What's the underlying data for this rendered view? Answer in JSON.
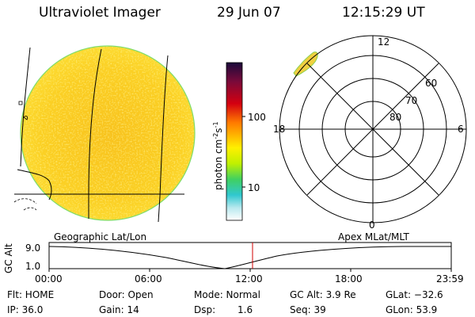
{
  "header": {
    "instrument": "Ultraviolet Imager",
    "date": "29 Jun 07",
    "time": "12:15:29 UT"
  },
  "colorbar": {
    "unit_label": "photon cm",
    "unit_sup1": "-2",
    "unit_mid": "s",
    "unit_sup2": "-1",
    "ticks": [
      "100",
      "10"
    ],
    "colors": [
      "#1a0a3a",
      "#7a0a3a",
      "#d40010",
      "#ff7a00",
      "#ffd000",
      "#fff000",
      "#c0f000",
      "#40d060",
      "#30c8d0",
      "#b8e8ee",
      "#ffffff"
    ]
  },
  "left_panel": {
    "caption": "Geographic Lat/Lon"
  },
  "polar_panel": {
    "caption": "Apex MLat/MLT",
    "mlt_labels": {
      "top": "12",
      "left": "18",
      "right": "6",
      "bottom": "0"
    },
    "lat_labels": [
      "60",
      "70",
      "80"
    ]
  },
  "alt_plot": {
    "ylabel": "GC Alt",
    "ymax_label": "9.0",
    "ymin_label": "1.0",
    "x_ticks": [
      "00:00",
      "06:00",
      "12:00",
      "18:00",
      "23:59"
    ],
    "marker_time": "12:15:29"
  },
  "info": {
    "flt": "Flt: HOME",
    "ip": "IP: 36.0",
    "door": "Door: Open",
    "gain": "Gain: 14",
    "mode": "Mode: Normal",
    "dsp_label": "Dsp:",
    "dsp_value": "1.6",
    "gc_alt": "GC Alt: 3.9 Re",
    "seq": "Seq: 39",
    "glat": "GLat: −32.6",
    "glon": "GLon: 53.9"
  }
}
